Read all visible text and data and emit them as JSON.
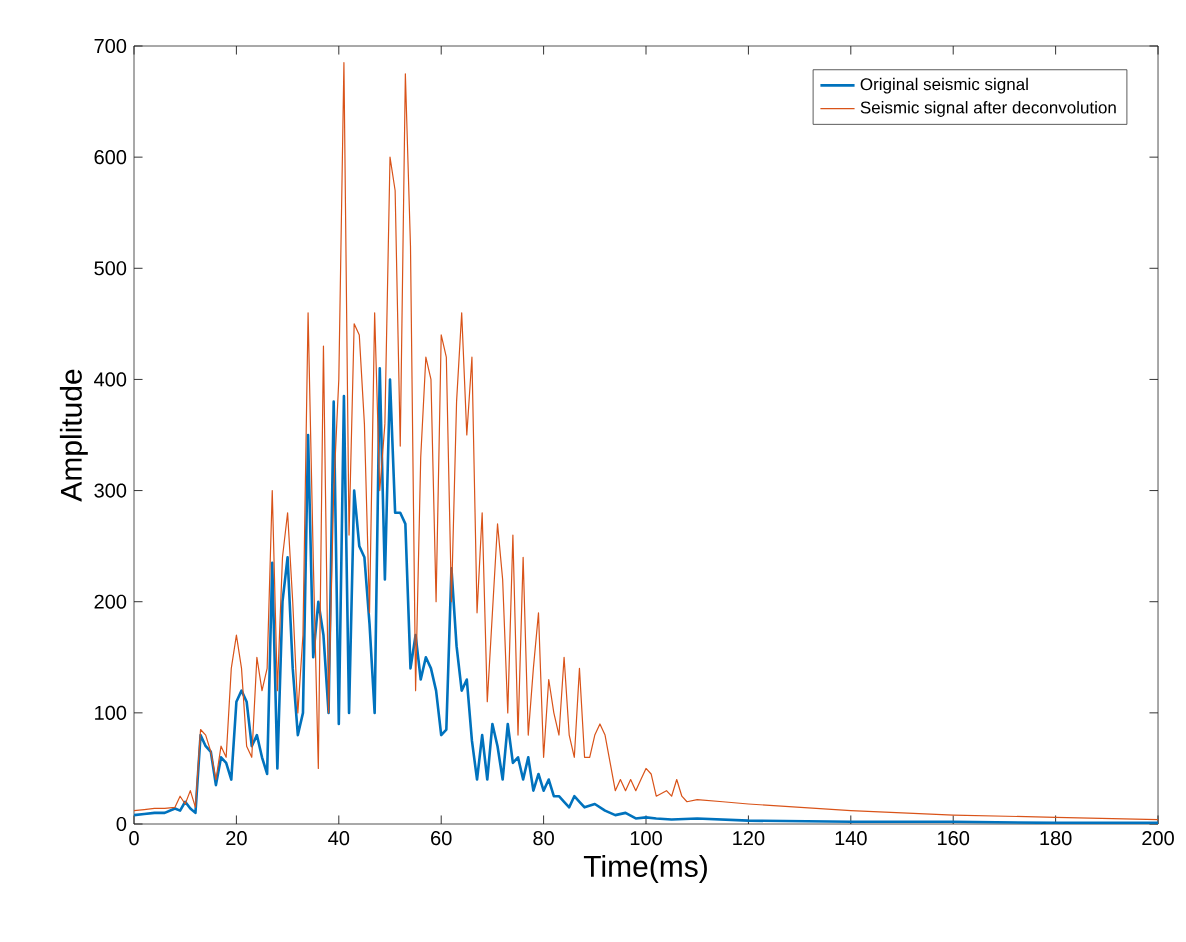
{
  "chart_data": {
    "type": "line",
    "xlabel": "Time(ms)",
    "ylabel": "Amplitude",
    "xlim": [
      0,
      200
    ],
    "ylim": [
      0,
      700
    ],
    "xticks": [
      0,
      20,
      40,
      60,
      80,
      100,
      120,
      140,
      160,
      180,
      200
    ],
    "yticks": [
      0,
      100,
      200,
      300,
      400,
      500,
      600,
      700
    ],
    "grid": false,
    "legend": "top right",
    "series": [
      {
        "name": "Original seismic signal",
        "color": "#0072bd",
        "x": [
          0,
          2,
          4,
          6,
          8,
          9,
          10,
          11,
          12,
          13,
          14,
          15,
          16,
          17,
          18,
          19,
          20,
          21,
          22,
          23,
          24,
          25,
          26,
          27,
          28,
          29,
          30,
          31,
          32,
          33,
          34,
          35,
          36,
          37,
          38,
          39,
          40,
          41,
          42,
          43,
          44,
          45,
          46,
          47,
          48,
          49,
          50,
          51,
          52,
          53,
          54,
          55,
          56,
          57,
          58,
          59,
          60,
          61,
          62,
          63,
          64,
          65,
          66,
          67,
          68,
          69,
          70,
          71,
          72,
          73,
          74,
          75,
          76,
          77,
          78,
          79,
          80,
          81,
          82,
          83,
          84,
          85,
          86,
          87,
          88,
          90,
          92,
          94,
          96,
          98,
          100,
          102,
          105,
          110,
          120,
          140,
          160,
          180,
          200
        ],
        "values": [
          8,
          9,
          10,
          10,
          14,
          12,
          20,
          14,
          10,
          80,
          70,
          65,
          35,
          60,
          55,
          40,
          110,
          120,
          110,
          70,
          80,
          60,
          45,
          235,
          50,
          200,
          240,
          140,
          80,
          100,
          350,
          150,
          200,
          170,
          100,
          380,
          90,
          385,
          100,
          300,
          250,
          240,
          180,
          100,
          410,
          220,
          400,
          280,
          280,
          270,
          140,
          170,
          130,
          150,
          140,
          120,
          80,
          85,
          230,
          160,
          120,
          130,
          75,
          40,
          80,
          40,
          90,
          70,
          40,
          90,
          55,
          60,
          40,
          60,
          30,
          45,
          30,
          40,
          25,
          25,
          20,
          15,
          25,
          20,
          15,
          18,
          12,
          8,
          10,
          5,
          6,
          5,
          4,
          5,
          3,
          2,
          2,
          1,
          1
        ]
      },
      {
        "name": "Seismic signal after deconvolution",
        "color": "#d95319",
        "x": [
          0,
          2,
          4,
          6,
          8,
          9,
          10,
          11,
          12,
          13,
          14,
          15,
          16,
          17,
          18,
          19,
          20,
          21,
          22,
          23,
          24,
          25,
          26,
          27,
          28,
          29,
          30,
          31,
          32,
          33,
          34,
          35,
          36,
          37,
          38,
          39,
          40,
          41,
          42,
          43,
          44,
          45,
          46,
          47,
          48,
          49,
          50,
          51,
          52,
          53,
          54,
          55,
          56,
          57,
          58,
          59,
          60,
          61,
          62,
          63,
          64,
          65,
          66,
          67,
          68,
          69,
          70,
          71,
          72,
          73,
          74,
          75,
          76,
          77,
          78,
          79,
          80,
          81,
          82,
          83,
          84,
          85,
          86,
          87,
          88,
          89,
          90,
          91,
          92,
          93,
          94,
          95,
          96,
          97,
          98,
          99,
          100,
          101,
          102,
          104,
          105,
          106,
          107,
          108,
          110,
          115,
          120,
          140,
          160,
          180,
          200
        ],
        "values": [
          12,
          13,
          14,
          14,
          15,
          25,
          18,
          30,
          15,
          85,
          80,
          65,
          40,
          70,
          60,
          140,
          170,
          140,
          70,
          60,
          150,
          120,
          140,
          300,
          120,
          240,
          280,
          200,
          100,
          170,
          460,
          240,
          50,
          430,
          100,
          300,
          400,
          685,
          260,
          450,
          440,
          360,
          190,
          460,
          300,
          360,
          600,
          570,
          340,
          675,
          520,
          120,
          330,
          420,
          400,
          200,
          440,
          420,
          200,
          380,
          460,
          350,
          420,
          190,
          280,
          110,
          190,
          270,
          220,
          100,
          260,
          80,
          240,
          80,
          140,
          190,
          60,
          130,
          100,
          80,
          150,
          80,
          60,
          140,
          60,
          60,
          80,
          90,
          80,
          55,
          30,
          40,
          30,
          40,
          30,
          40,
          50,
          45,
          25,
          30,
          25,
          40,
          25,
          20,
          22,
          20,
          18,
          12,
          8,
          6,
          4
        ]
      }
    ]
  }
}
